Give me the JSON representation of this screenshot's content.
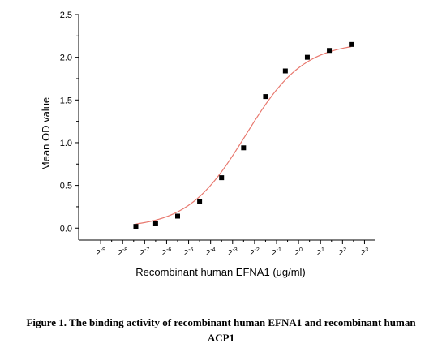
{
  "chart_data": {
    "type": "scatter",
    "xlabel": "Recombinant human  EFNA1 (ug/ml)",
    "ylabel": "Mean OD value",
    "x_ticks": [
      {
        "base": "2",
        "exp": "-9"
      },
      {
        "base": "2",
        "exp": "-8"
      },
      {
        "base": "2",
        "exp": "-7"
      },
      {
        "base": "2",
        "exp": "-6"
      },
      {
        "base": "2",
        "exp": "-5"
      },
      {
        "base": "2",
        "exp": "-4"
      },
      {
        "base": "2",
        "exp": "-3"
      },
      {
        "base": "2",
        "exp": "-2"
      },
      {
        "base": "2",
        "exp": "-1"
      },
      {
        "base": "2",
        "exp": "0"
      },
      {
        "base": "2",
        "exp": "1"
      },
      {
        "base": "2",
        "exp": "2"
      },
      {
        "base": "2",
        "exp": "3"
      }
    ],
    "x_scale": "log2",
    "xlim_exponent": [
      -10,
      3.5
    ],
    "y_ticks": [
      "0.0",
      "0.5",
      "1.0",
      "1.5",
      "2.0",
      "2.5"
    ],
    "ylim": [
      -0.14,
      2.5
    ],
    "points": [
      {
        "x_exp": -7.4,
        "y": 0.02
      },
      {
        "x_exp": -6.5,
        "y": 0.05
      },
      {
        "x_exp": -5.5,
        "y": 0.14
      },
      {
        "x_exp": -4.5,
        "y": 0.31
      },
      {
        "x_exp": -3.5,
        "y": 0.59
      },
      {
        "x_exp": -2.5,
        "y": 0.94
      },
      {
        "x_exp": -1.5,
        "y": 1.54
      },
      {
        "x_exp": -0.6,
        "y": 1.84
      },
      {
        "x_exp": 0.4,
        "y": 2.0
      },
      {
        "x_exp": 1.4,
        "y": 2.08
      },
      {
        "x_exp": 2.4,
        "y": 2.15
      }
    ],
    "fit": {
      "type": "4PL",
      "bottom": 0.0,
      "top": 2.18,
      "ec50_exp": -2.4,
      "slope": 0.52
    },
    "colors": {
      "points": "#000000",
      "fit": "#e8786e",
      "axis": "#000000"
    }
  },
  "caption": {
    "line1": "Figure 1. The binding activity of recombinant human EFNA1 and recombinant human",
    "line2": "ACP1"
  }
}
